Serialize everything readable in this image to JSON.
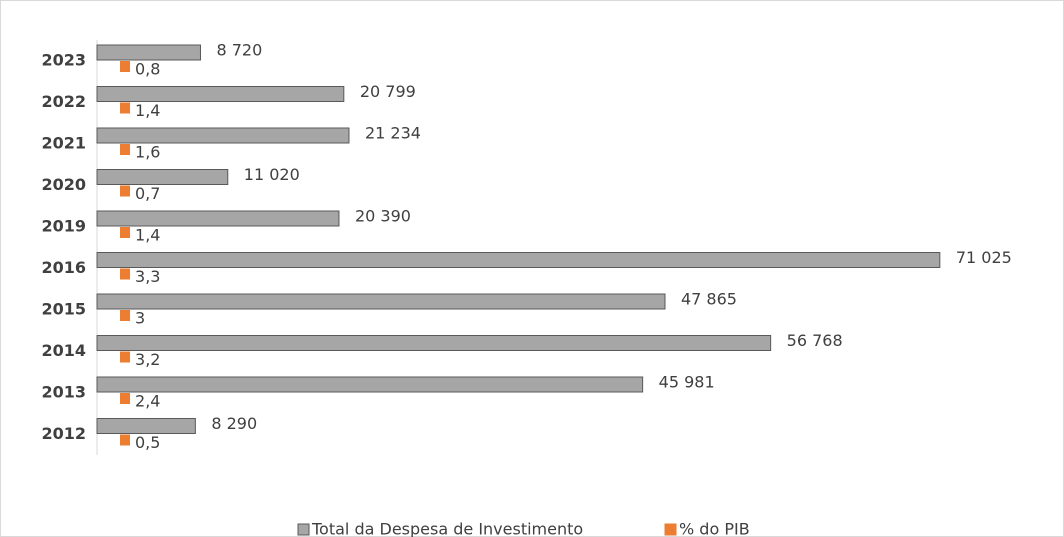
{
  "chart_data": {
    "type": "bar",
    "orientation": "horizontal",
    "categories": [
      "2023",
      "2022",
      "2021",
      "2020",
      "2019",
      "2016",
      "2015",
      "2014",
      "2013",
      "2012"
    ],
    "series": [
      {
        "name": "Total da Despesa de Investimento",
        "color": "#a6a6a6",
        "values": [
          8720,
          20799,
          21234,
          11020,
          20390,
          71025,
          47865,
          56768,
          45981,
          8290
        ],
        "value_labels": [
          "8 720",
          "20 799",
          "21 234",
          "11 020",
          "20 390",
          "71 025",
          "47 865",
          "56 768",
          "45 981",
          "8 290"
        ]
      },
      {
        "name": "% do PIB",
        "color": "#ed7d31",
        "values": [
          0.8,
          1.4,
          1.6,
          0.7,
          1.4,
          3.3,
          3,
          3.2,
          2.4,
          0.5
        ],
        "value_labels": [
          "0,8",
          "1,4",
          "1,6",
          "0,7",
          "1,4",
          "3,3",
          "3",
          "3,2",
          "2,4",
          "0,5"
        ]
      }
    ],
    "xlim": [
      0,
      75000
    ],
    "legend": "bottom"
  }
}
